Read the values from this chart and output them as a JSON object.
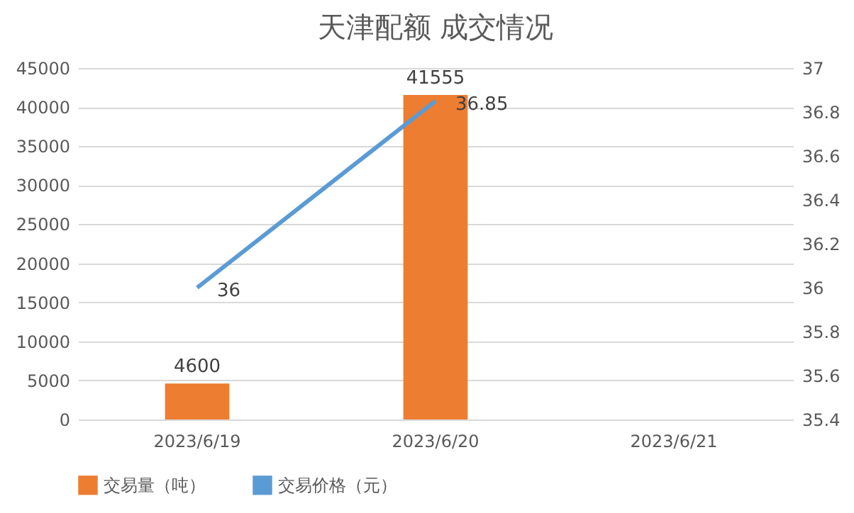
{
  "chart_data": {
    "type": "bar",
    "title": "天津配额 成交情况",
    "categories": [
      "2023/6/19",
      "2023/6/20",
      "2023/6/21"
    ],
    "series": [
      {
        "name": "交易量（吨）",
        "color": "#ed7d31",
        "values": [
          4600,
          41555,
          null
        ]
      },
      {
        "name": "交易价格（元）",
        "type": "line",
        "axis": "y2",
        "color": "#5b9bd5",
        "values": [
          36,
          36.85,
          null
        ]
      }
    ],
    "ylim": [
      0,
      45000
    ],
    "yticks": [
      0,
      5000,
      10000,
      15000,
      20000,
      25000,
      30000,
      35000,
      40000,
      45000
    ],
    "y2lim": [
      35.4,
      37
    ],
    "y2ticks": [
      35.4,
      35.6,
      35.8,
      36,
      36.2,
      36.4,
      36.6,
      36.8,
      37
    ],
    "grid": "y",
    "legend": "bottom",
    "data_labels": true,
    "line_style": "solid"
  }
}
